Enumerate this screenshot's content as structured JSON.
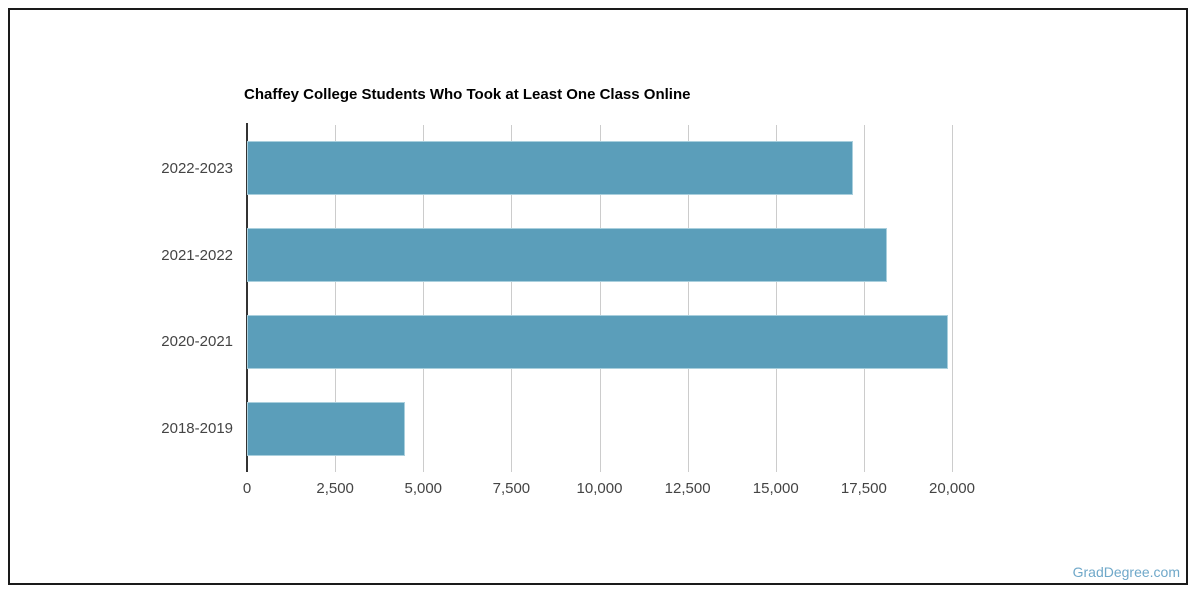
{
  "frame": {
    "border_color": "#1a1a1a",
    "background_color": "#ffffff"
  },
  "chart_data": {
    "type": "bar",
    "orientation": "horizontal",
    "title": "Chaffey College Students Who Took at Least One Class Online",
    "categories": [
      "2022-2023",
      "2021-2022",
      "2020-2021",
      "2018-2019"
    ],
    "values": [
      17200,
      18150,
      19900,
      4480
    ],
    "xlabel": "",
    "ylabel": "",
    "xlim": [
      0,
      20000
    ],
    "x_tick_values": [
      0,
      2500,
      5000,
      7500,
      10000,
      12500,
      15000,
      17500,
      20000
    ],
    "x_tick_labels": [
      "0",
      "2,500",
      "5,000",
      "7,500",
      "10,000",
      "12,500",
      "15,000",
      "17,500",
      "20,000"
    ],
    "grid": "vertical",
    "legend": "none",
    "colors": {
      "bar": "#5b9eba",
      "bar_border": "#a9cfdd",
      "gridline": "#cccccc",
      "axis_line": "#333333",
      "tick_label": "#444444",
      "title": "#000000"
    }
  },
  "watermark": {
    "text": "GradDegree.com",
    "color": "#6fa8c9"
  }
}
